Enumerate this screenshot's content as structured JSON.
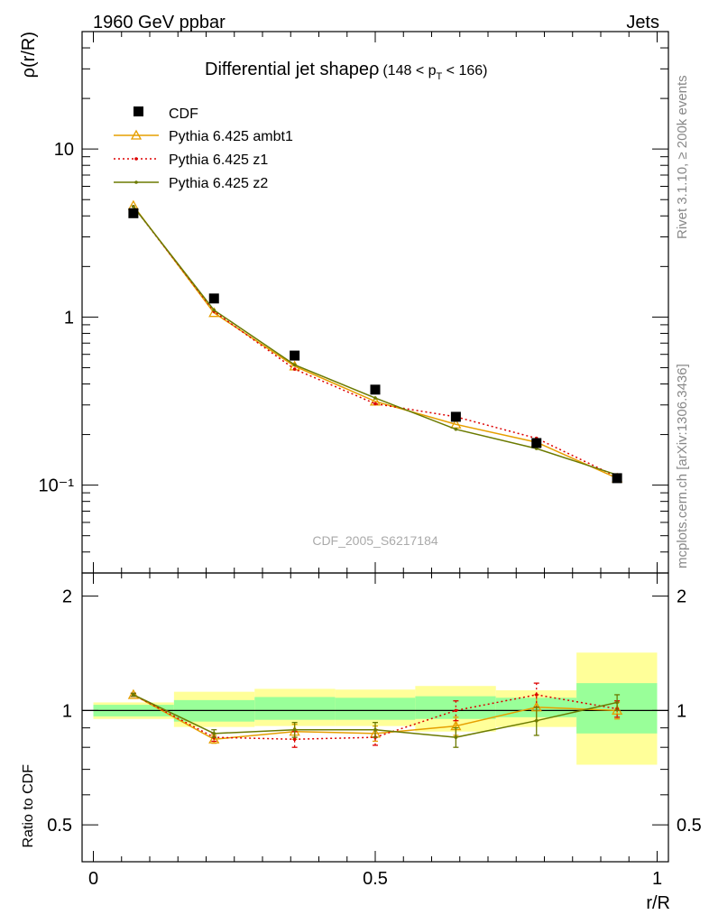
{
  "header": {
    "left": "1960 GeV ppbar",
    "right": "Jets"
  },
  "side": {
    "rivet": "Rivet 3.1.10, ≥ 200k events",
    "mcplots": "mcplots.cern.ch [arXiv:1306.3436]"
  },
  "chart_data": {
    "type": "line",
    "title": "Differential jet shapeρ",
    "subtitle": "(148 < p_T < 166)",
    "analysis_id": "CDF_2005_S6217184",
    "xlabel": "r/R",
    "ylabel_top": "ρ(r/R)",
    "ylabel_bottom": "Ratio to CDF",
    "xlim": [
      -0.02,
      1.02
    ],
    "ylim_top": [
      0.03,
      50
    ],
    "ylim_bottom": [
      0.4,
      2.3
    ],
    "x_scale": "linear",
    "y_scale_top": "log",
    "y_scale_bottom": "log",
    "x_ticks": [
      {
        "v": 0,
        "label": "0"
      },
      {
        "v": 0.5,
        "label": "0.5"
      },
      {
        "v": 1,
        "label": "1"
      }
    ],
    "y_ticks_top": [
      {
        "v": 0.1,
        "label": "10⁻¹"
      },
      {
        "v": 1,
        "label": "1"
      },
      {
        "v": 10,
        "label": "10"
      }
    ],
    "y_ticks_bottom": [
      {
        "v": 0.5,
        "label": "0.5"
      },
      {
        "v": 1,
        "label": "1"
      },
      {
        "v": 2,
        "label": "2"
      }
    ],
    "legend_position": "top-left",
    "bins": [
      [
        0.0,
        0.143
      ],
      [
        0.143,
        0.286
      ],
      [
        0.286,
        0.429
      ],
      [
        0.429,
        0.571
      ],
      [
        0.571,
        0.714
      ],
      [
        0.714,
        0.857
      ],
      [
        0.857,
        1.0
      ]
    ],
    "data": {
      "name": "CDF",
      "x": [
        0.071,
        0.214,
        0.357,
        0.5,
        0.643,
        0.786,
        0.929
      ],
      "y": [
        4.15,
        1.29,
        0.59,
        0.37,
        0.255,
        0.178,
        0.11
      ]
    },
    "band_inner": [
      [
        0.965,
        1.035
      ],
      [
        0.935,
        1.065
      ],
      [
        0.945,
        1.085
      ],
      [
        0.945,
        1.08
      ],
      [
        0.95,
        1.09
      ],
      [
        0.96,
        1.08
      ],
      [
        0.87,
        1.18
      ]
    ],
    "band_outer": [
      [
        0.95,
        1.05
      ],
      [
        0.905,
        1.12
      ],
      [
        0.91,
        1.14
      ],
      [
        0.91,
        1.135
      ],
      [
        0.88,
        1.16
      ],
      [
        0.905,
        1.13
      ],
      [
        0.72,
        1.42
      ]
    ],
    "series": [
      {
        "name": "Pythia 6.425 ambt1",
        "color": "#e69f00",
        "style": "solid",
        "marker": "open-triangle",
        "x": [
          0.071,
          0.214,
          0.357,
          0.5,
          0.643,
          0.786,
          0.929
        ],
        "y": [
          4.6,
          1.06,
          0.51,
          0.315,
          0.23,
          0.18,
          0.11
        ],
        "ratio": [
          1.1,
          0.84,
          0.88,
          0.87,
          0.91,
          1.02,
          1.0
        ],
        "ratio_err": [
          0.01,
          0.02,
          0.04,
          0.04,
          0.05,
          0.08,
          0.05
        ]
      },
      {
        "name": "Pythia 6.425 z1",
        "color": "#dd0000",
        "style": "dotted",
        "marker": "dot",
        "x": [
          0.071,
          0.214,
          0.357,
          0.5,
          0.643,
          0.786,
          0.929
        ],
        "y": [
          4.55,
          1.08,
          0.49,
          0.305,
          0.255,
          0.19,
          0.112
        ],
        "ratio": [
          1.1,
          0.85,
          0.84,
          0.85,
          1.0,
          1.1,
          1.01
        ],
        "ratio_err": [
          0.01,
          0.02,
          0.04,
          0.04,
          0.06,
          0.08,
          0.05
        ]
      },
      {
        "name": "Pythia 6.425 z2",
        "color": "#6b7a00",
        "style": "solid",
        "marker": "dot",
        "x": [
          0.071,
          0.214,
          0.357,
          0.5,
          0.643,
          0.786,
          0.929
        ],
        "y": [
          4.55,
          1.1,
          0.52,
          0.33,
          0.215,
          0.165,
          0.115
        ],
        "ratio": [
          1.1,
          0.87,
          0.89,
          0.89,
          0.85,
          0.94,
          1.05
        ],
        "ratio_err": [
          0.01,
          0.02,
          0.04,
          0.04,
          0.05,
          0.08,
          0.05
        ]
      }
    ]
  }
}
